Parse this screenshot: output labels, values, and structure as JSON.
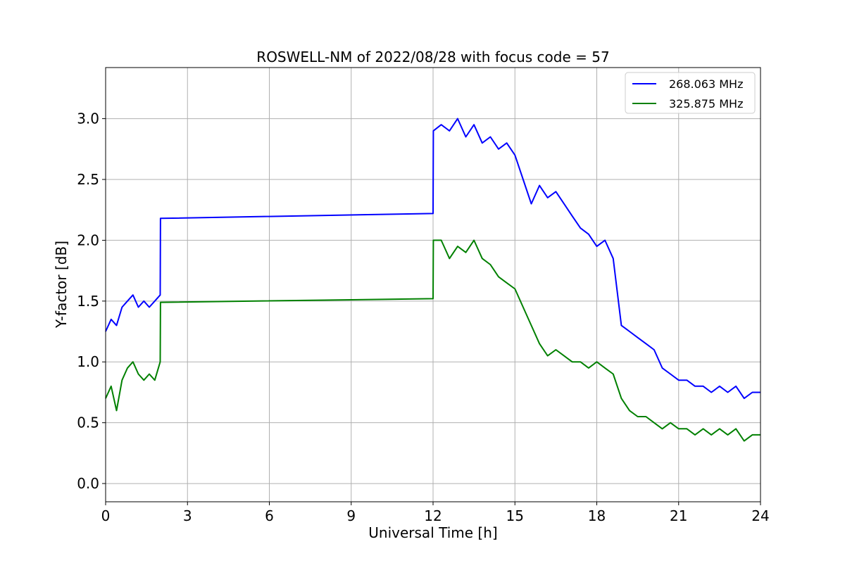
{
  "chart_data": {
    "type": "line",
    "title": "ROSWELL-NM of 2022/08/28 with focus code = 57",
    "xlabel": "Universal Time [h]",
    "ylabel": "Y-factor [dB]",
    "xlim": [
      0,
      24
    ],
    "ylim": [
      -0.15,
      3.42
    ],
    "xticks": [
      0,
      3,
      6,
      9,
      12,
      15,
      18,
      21,
      24
    ],
    "yticks": [
      0.0,
      0.5,
      1.0,
      1.5,
      2.0,
      2.5,
      3.0
    ],
    "grid": true,
    "legend_position": "top-right",
    "series": [
      {
        "name": "268.063 MHz",
        "color": "#0000ff",
        "x": [
          0.0,
          0.2,
          0.4,
          0.6,
          0.8,
          1.0,
          1.2,
          1.4,
          1.6,
          1.8,
          2.0,
          2.01,
          12.0,
          12.01,
          12.3,
          12.6,
          12.9,
          13.2,
          13.5,
          13.8,
          14.1,
          14.4,
          14.7,
          15.0,
          15.3,
          15.6,
          15.9,
          16.2,
          16.5,
          16.8,
          17.1,
          17.4,
          17.7,
          18.0,
          18.3,
          18.6,
          18.9,
          19.2,
          19.5,
          19.8,
          20.1,
          20.4,
          20.7,
          21.0,
          21.3,
          21.6,
          21.9,
          22.2,
          22.5,
          22.8,
          23.1,
          23.4,
          23.7,
          24.0
        ],
        "y": [
          1.25,
          1.35,
          1.3,
          1.45,
          1.5,
          1.55,
          1.45,
          1.5,
          1.45,
          1.5,
          1.55,
          2.18,
          2.22,
          2.9,
          2.95,
          2.9,
          3.0,
          2.85,
          2.95,
          2.8,
          2.85,
          2.75,
          2.8,
          2.7,
          2.5,
          2.3,
          2.45,
          2.35,
          2.4,
          2.3,
          2.2,
          2.1,
          2.05,
          1.95,
          2.0,
          1.85,
          1.3,
          1.25,
          1.2,
          1.15,
          1.1,
          0.95,
          0.9,
          0.85,
          0.85,
          0.8,
          0.8,
          0.75,
          0.8,
          0.75,
          0.8,
          0.7,
          0.75,
          0.75
        ]
      },
      {
        "name": "325.875 MHz",
        "color": "#008000",
        "x": [
          0.0,
          0.2,
          0.4,
          0.6,
          0.8,
          1.0,
          1.2,
          1.4,
          1.6,
          1.8,
          2.0,
          2.01,
          12.0,
          12.01,
          12.3,
          12.6,
          12.9,
          13.2,
          13.5,
          13.8,
          14.1,
          14.4,
          14.7,
          15.0,
          15.3,
          15.6,
          15.9,
          16.2,
          16.5,
          16.8,
          17.1,
          17.4,
          17.7,
          18.0,
          18.3,
          18.6,
          18.9,
          19.2,
          19.5,
          19.8,
          20.1,
          20.4,
          20.7,
          21.0,
          21.3,
          21.6,
          21.9,
          22.2,
          22.5,
          22.8,
          23.1,
          23.4,
          23.7,
          24.0
        ],
        "y": [
          0.7,
          0.8,
          0.6,
          0.85,
          0.95,
          1.0,
          0.9,
          0.85,
          0.9,
          0.85,
          1.0,
          1.49,
          1.52,
          2.0,
          2.0,
          1.85,
          1.95,
          1.9,
          2.0,
          1.85,
          1.8,
          1.7,
          1.65,
          1.6,
          1.45,
          1.3,
          1.15,
          1.05,
          1.1,
          1.05,
          1.0,
          1.0,
          0.95,
          1.0,
          0.95,
          0.9,
          0.7,
          0.6,
          0.55,
          0.55,
          0.5,
          0.45,
          0.5,
          0.45,
          0.45,
          0.4,
          0.45,
          0.4,
          0.45,
          0.4,
          0.45,
          0.35,
          0.4,
          0.4
        ]
      }
    ]
  }
}
